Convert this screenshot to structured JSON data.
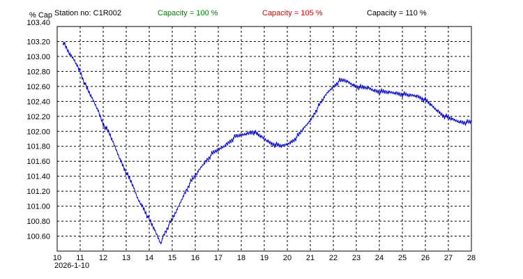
{
  "header": {
    "station": "Station no: C1R002",
    "cap100": "Capacity = 100 %",
    "cap105": "Capacity = 105 %",
    "cap110": "Capacity = 110 %"
  },
  "colors": {
    "cap100": "#008000",
    "cap105": "#e00000",
    "cap110": "#000000",
    "series": "#0000d0",
    "grid": "#000000"
  },
  "chart_data": {
    "type": "line",
    "ylabel": "% Cap",
    "xlabel": "",
    "start_date": "2026-1-10",
    "xlim": [
      10,
      28
    ],
    "ylim": [
      100.4,
      103.4
    ],
    "x_ticks": [
      10,
      11,
      12,
      13,
      14,
      15,
      16,
      17,
      18,
      19,
      20,
      21,
      22,
      23,
      24,
      25,
      26,
      27,
      28
    ],
    "y_ticks": [
      100.6,
      100.8,
      101.0,
      101.2,
      101.4,
      101.6,
      101.8,
      102.0,
      102.2,
      102.4,
      102.6,
      102.8,
      103.0,
      103.2,
      103.4
    ],
    "grid": true,
    "series": [
      {
        "x": [
          10.25,
          10.5,
          10.75,
          11.0,
          11.25,
          11.5,
          11.75,
          12.0,
          12.25,
          12.5,
          12.75,
          13.0,
          13.25,
          13.5,
          13.75,
          14.0,
          14.2,
          14.4,
          14.5,
          14.6,
          14.8,
          15.0,
          15.25,
          15.5,
          15.75,
          16.0,
          16.25,
          16.5,
          16.75,
          17.0,
          17.25,
          17.5,
          17.75,
          18.0,
          18.25,
          18.5,
          18.75,
          19.0,
          19.25,
          19.5,
          19.75,
          20.0,
          20.25,
          20.5,
          20.75,
          21.0,
          21.25,
          21.5,
          21.75,
          22.0,
          22.25,
          22.5,
          22.75,
          23.0,
          23.25,
          23.5,
          23.75,
          24.0,
          24.25,
          24.5,
          24.75,
          25.0,
          25.25,
          25.5,
          25.75,
          26.0,
          26.25,
          26.5,
          26.75,
          27.0,
          27.25,
          27.5,
          27.75,
          28.0
        ],
        "y": [
          103.2,
          103.05,
          102.95,
          102.8,
          102.6,
          102.45,
          102.3,
          102.1,
          101.98,
          101.8,
          101.62,
          101.45,
          101.3,
          101.1,
          100.98,
          100.82,
          100.7,
          100.57,
          100.5,
          100.6,
          100.72,
          100.82,
          100.98,
          101.15,
          101.3,
          101.4,
          101.52,
          101.62,
          101.7,
          101.75,
          101.8,
          101.87,
          101.93,
          101.95,
          101.97,
          102.0,
          101.95,
          101.9,
          101.85,
          101.82,
          101.8,
          101.83,
          101.88,
          101.95,
          102.05,
          102.15,
          102.28,
          102.4,
          102.52,
          102.6,
          102.67,
          102.68,
          102.64,
          102.6,
          102.58,
          102.58,
          102.55,
          102.53,
          102.52,
          102.52,
          102.51,
          102.5,
          102.48,
          102.48,
          102.46,
          102.42,
          102.35,
          102.28,
          102.22,
          102.18,
          102.15,
          102.13,
          102.12,
          102.12
        ]
      }
    ]
  }
}
